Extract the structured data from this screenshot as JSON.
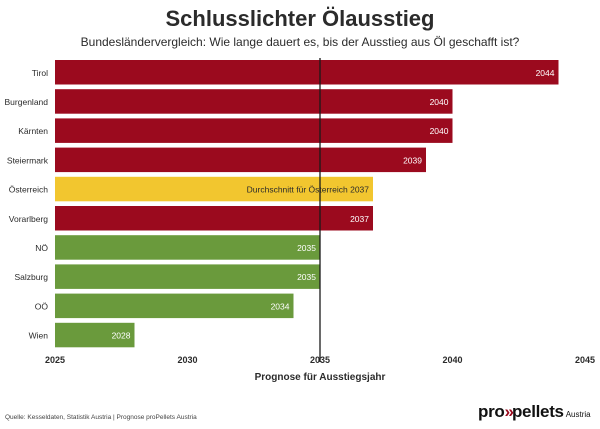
{
  "chart_data": {
    "type": "bar",
    "orientation": "horizontal",
    "title": "Schlusslichter Ölausstieg",
    "subtitle": "Bundesländervergleich: Wie lange dauert es, bis der Ausstieg aus Öl geschafft ist?",
    "xlabel": "Prognose für Ausstiegsjahr",
    "ylabel": "",
    "xlim": [
      2025,
      2045
    ],
    "xticks": [
      2025,
      2030,
      2035,
      2040,
      2045
    ],
    "reference_line": 2035,
    "bars": [
      {
        "category": "Tirol",
        "value": 2044,
        "label": "2044",
        "color": "#9b0a1e"
      },
      {
        "category": "Burgenland",
        "value": 2040,
        "label": "2040",
        "color": "#9b0a1e"
      },
      {
        "category": "Kärnten",
        "value": 2040,
        "label": "2040",
        "color": "#9b0a1e"
      },
      {
        "category": "Steiermark",
        "value": 2039,
        "label": "2039",
        "color": "#9b0a1e"
      },
      {
        "category": "Österreich",
        "value": 2037,
        "label": "Durchschnitt für Österreich 2037",
        "color": "#f2c62f"
      },
      {
        "category": "Vorarlberg",
        "value": 2037,
        "label": "2037",
        "color": "#9b0a1e"
      },
      {
        "category": "NÖ",
        "value": 2035,
        "label": "2035",
        "color": "#6a9a3c"
      },
      {
        "category": "Salzburg",
        "value": 2035,
        "label": "2035",
        "color": "#6a9a3c"
      },
      {
        "category": "OÖ",
        "value": 2034,
        "label": "2034",
        "color": "#6a9a3c"
      },
      {
        "category": "Wien",
        "value": 2028,
        "label": "2028",
        "color": "#6a9a3c"
      }
    ]
  },
  "footer": {
    "source": "Quelle: Kesseldaten, Statistik Austria | Prognose proPellets Austria",
    "logo_pre": "pro",
    "logo_arrows": "»",
    "logo_post": "pellets",
    "logo_sub": "Austria"
  }
}
